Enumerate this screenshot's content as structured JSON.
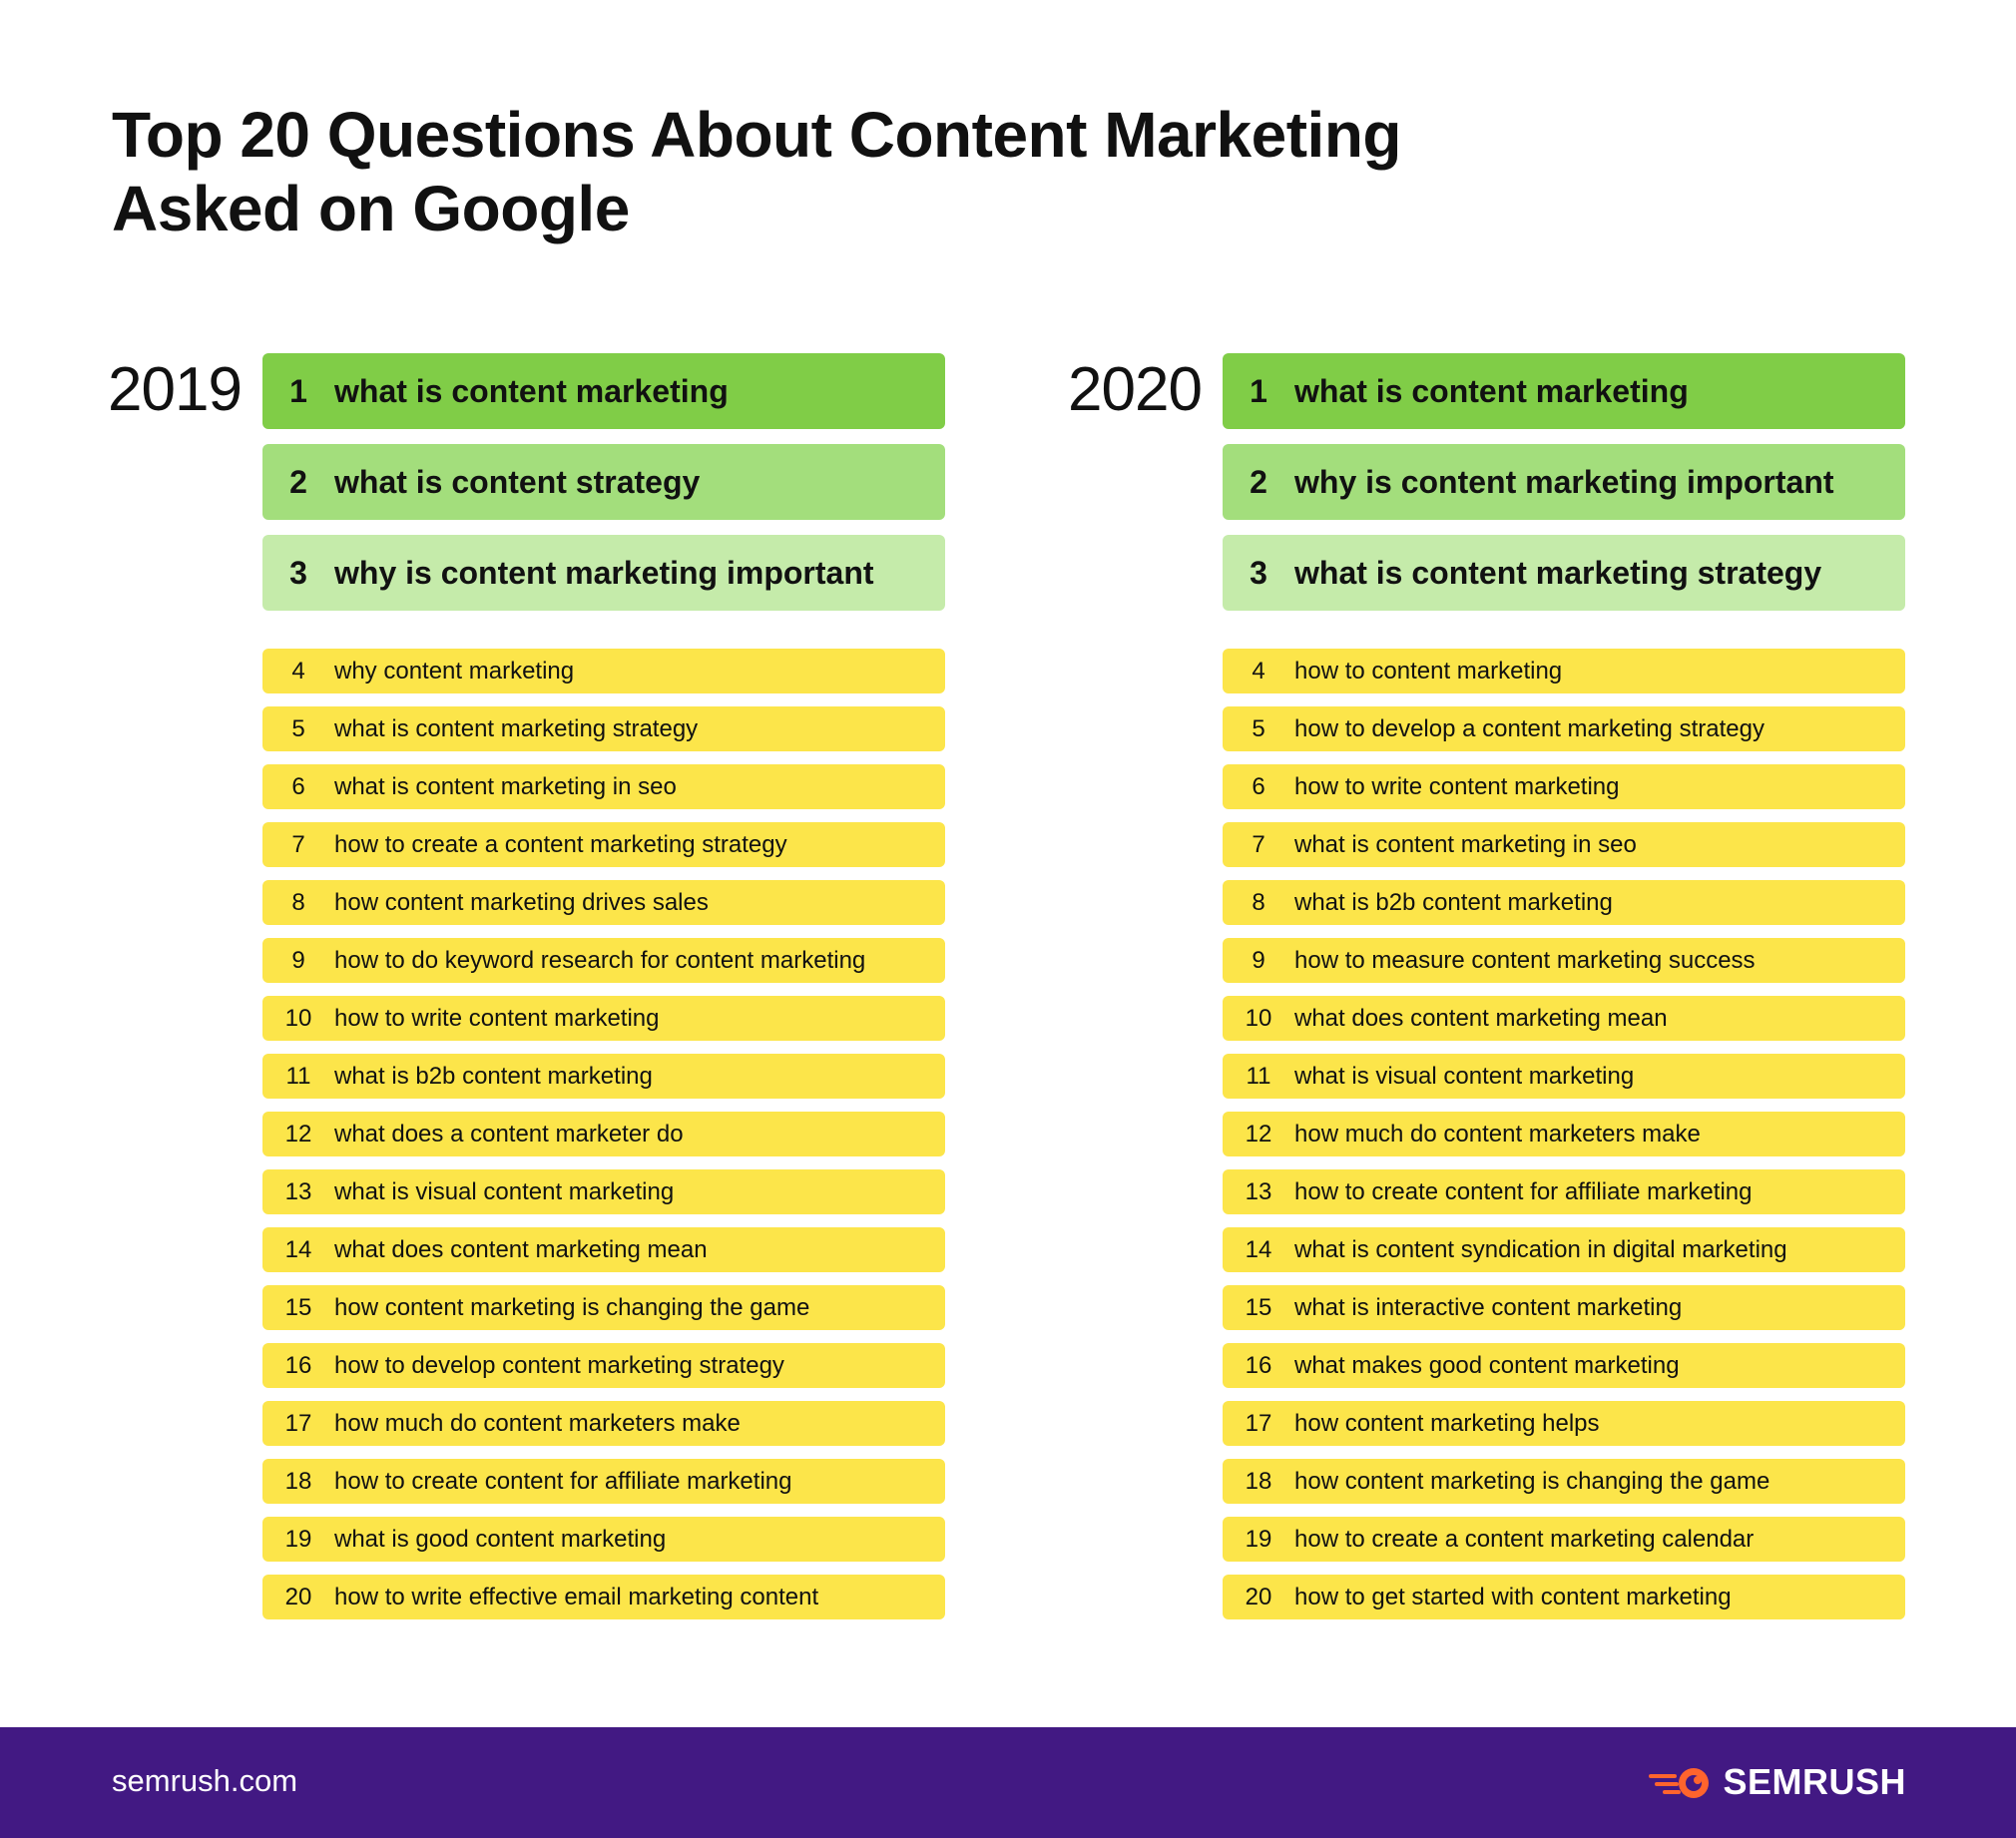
{
  "title": {
    "line1": "Top 20 Questions About Content Marketing",
    "line2": "Asked on Google"
  },
  "colors": {
    "rank1": "#80cd47",
    "rank2": "#a3de7c",
    "rank3": "#c5ebaa",
    "rest": "#fce54a",
    "footer": "#421983",
    "brand_accent": "#ff642d"
  },
  "columns": [
    {
      "year": "2019",
      "items": [
        {
          "rank": "1",
          "text": "what is content marketing"
        },
        {
          "rank": "2",
          "text": "what is content strategy"
        },
        {
          "rank": "3",
          "text": "why is content marketing important"
        },
        {
          "rank": "4",
          "text": "why content marketing"
        },
        {
          "rank": "5",
          "text": "what is content marketing strategy"
        },
        {
          "rank": "6",
          "text": "what is content marketing in seo"
        },
        {
          "rank": "7",
          "text": "how to create a content marketing strategy"
        },
        {
          "rank": "8",
          "text": "how content marketing drives sales"
        },
        {
          "rank": "9",
          "text": "how to do keyword research for content marketing"
        },
        {
          "rank": "10",
          "text": "how to write content marketing"
        },
        {
          "rank": "11",
          "text": "what is b2b content marketing"
        },
        {
          "rank": "12",
          "text": "what does a content marketer do"
        },
        {
          "rank": "13",
          "text": "what is visual content marketing"
        },
        {
          "rank": "14",
          "text": "what does content marketing mean"
        },
        {
          "rank": "15",
          "text": "how content marketing is changing the game"
        },
        {
          "rank": "16",
          "text": "how to develop content marketing strategy"
        },
        {
          "rank": "17",
          "text": "how much do content marketers make"
        },
        {
          "rank": "18",
          "text": "how to create content for affiliate marketing"
        },
        {
          "rank": "19",
          "text": "what is good content marketing"
        },
        {
          "rank": "20",
          "text": "how to write effective email marketing content"
        }
      ]
    },
    {
      "year": "2020",
      "items": [
        {
          "rank": "1",
          "text": "what is content marketing"
        },
        {
          "rank": "2",
          "text": "why is content marketing important"
        },
        {
          "rank": "3",
          "text": "what is content marketing strategy"
        },
        {
          "rank": "4",
          "text": "how to content marketing"
        },
        {
          "rank": "5",
          "text": "how to develop a content marketing strategy"
        },
        {
          "rank": "6",
          "text": "how to write content marketing"
        },
        {
          "rank": "7",
          "text": "what is content marketing in seo"
        },
        {
          "rank": "8",
          "text": "what is b2b content marketing"
        },
        {
          "rank": "9",
          "text": "how to measure content marketing success"
        },
        {
          "rank": "10",
          "text": "what does content marketing mean"
        },
        {
          "rank": "11",
          "text": "what is visual content marketing"
        },
        {
          "rank": "12",
          "text": "how much do content marketers make"
        },
        {
          "rank": "13",
          "text": "how to create content for affiliate marketing"
        },
        {
          "rank": "14",
          "text": "what is content syndication in digital marketing"
        },
        {
          "rank": "15",
          "text": "what is interactive content marketing"
        },
        {
          "rank": "16",
          "text": "what makes good content marketing"
        },
        {
          "rank": "17",
          "text": "how content marketing helps"
        },
        {
          "rank": "18",
          "text": "how content marketing is changing the game"
        },
        {
          "rank": "19",
          "text": "how to create a content marketing calendar"
        },
        {
          "rank": "20",
          "text": "how to get started with content marketing"
        }
      ]
    }
  ],
  "footer": {
    "url": "semrush.com",
    "brand": "SEMRUSH",
    "logo_icon": "semrush-fire-icon"
  }
}
